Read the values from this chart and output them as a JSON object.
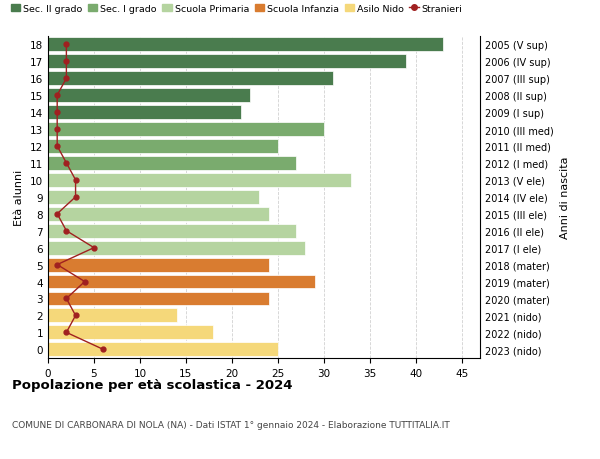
{
  "ages": [
    18,
    17,
    16,
    15,
    14,
    13,
    12,
    11,
    10,
    9,
    8,
    7,
    6,
    5,
    4,
    3,
    2,
    1,
    0
  ],
  "years": [
    "2005 (V sup)",
    "2006 (IV sup)",
    "2007 (III sup)",
    "2008 (II sup)",
    "2009 (I sup)",
    "2010 (III med)",
    "2011 (II med)",
    "2012 (I med)",
    "2013 (V ele)",
    "2014 (IV ele)",
    "2015 (III ele)",
    "2016 (II ele)",
    "2017 (I ele)",
    "2018 (mater)",
    "2019 (mater)",
    "2020 (mater)",
    "2021 (nido)",
    "2022 (nido)",
    "2023 (nido)"
  ],
  "bar_values": [
    43,
    39,
    31,
    22,
    21,
    30,
    25,
    27,
    33,
    23,
    24,
    27,
    28,
    24,
    29,
    24,
    14,
    18,
    25
  ],
  "bar_colors": [
    "#4a7c4e",
    "#4a7c4e",
    "#4a7c4e",
    "#4a7c4e",
    "#4a7c4e",
    "#7aab6e",
    "#7aab6e",
    "#7aab6e",
    "#b5d4a0",
    "#b5d4a0",
    "#b5d4a0",
    "#b5d4a0",
    "#b5d4a0",
    "#d97c30",
    "#d97c30",
    "#d97c30",
    "#f5d87a",
    "#f5d87a",
    "#f5d87a"
  ],
  "stranieri_values": [
    2,
    2,
    2,
    1,
    1,
    1,
    1,
    2,
    3,
    3,
    1,
    2,
    5,
    1,
    4,
    2,
    3,
    2,
    6
  ],
  "legend_labels": [
    "Sec. II grado",
    "Sec. I grado",
    "Scuola Primaria",
    "Scuola Infanzia",
    "Asilo Nido",
    "Stranieri"
  ],
  "legend_colors": [
    "#4a7c4e",
    "#7aab6e",
    "#b5d4a0",
    "#d97c30",
    "#f5d87a",
    "#a02020"
  ],
  "ylabel_label": "Età alunni",
  "ylabel2_label": "Anni di nascita",
  "title": "Popolazione per età scolastica - 2024",
  "subtitle": "COMUNE DI CARBONARA DI NOLA (NA) - Dati ISTAT 1° gennaio 2024 - Elaborazione TUTTITALIA.IT",
  "xlim": [
    0,
    47
  ],
  "xticks": [
    0,
    5,
    10,
    15,
    20,
    25,
    30,
    35,
    40,
    45
  ],
  "background_color": "#ffffff",
  "grid_color": "#cccccc",
  "stranieri_color": "#a02020",
  "bar_height": 0.82
}
